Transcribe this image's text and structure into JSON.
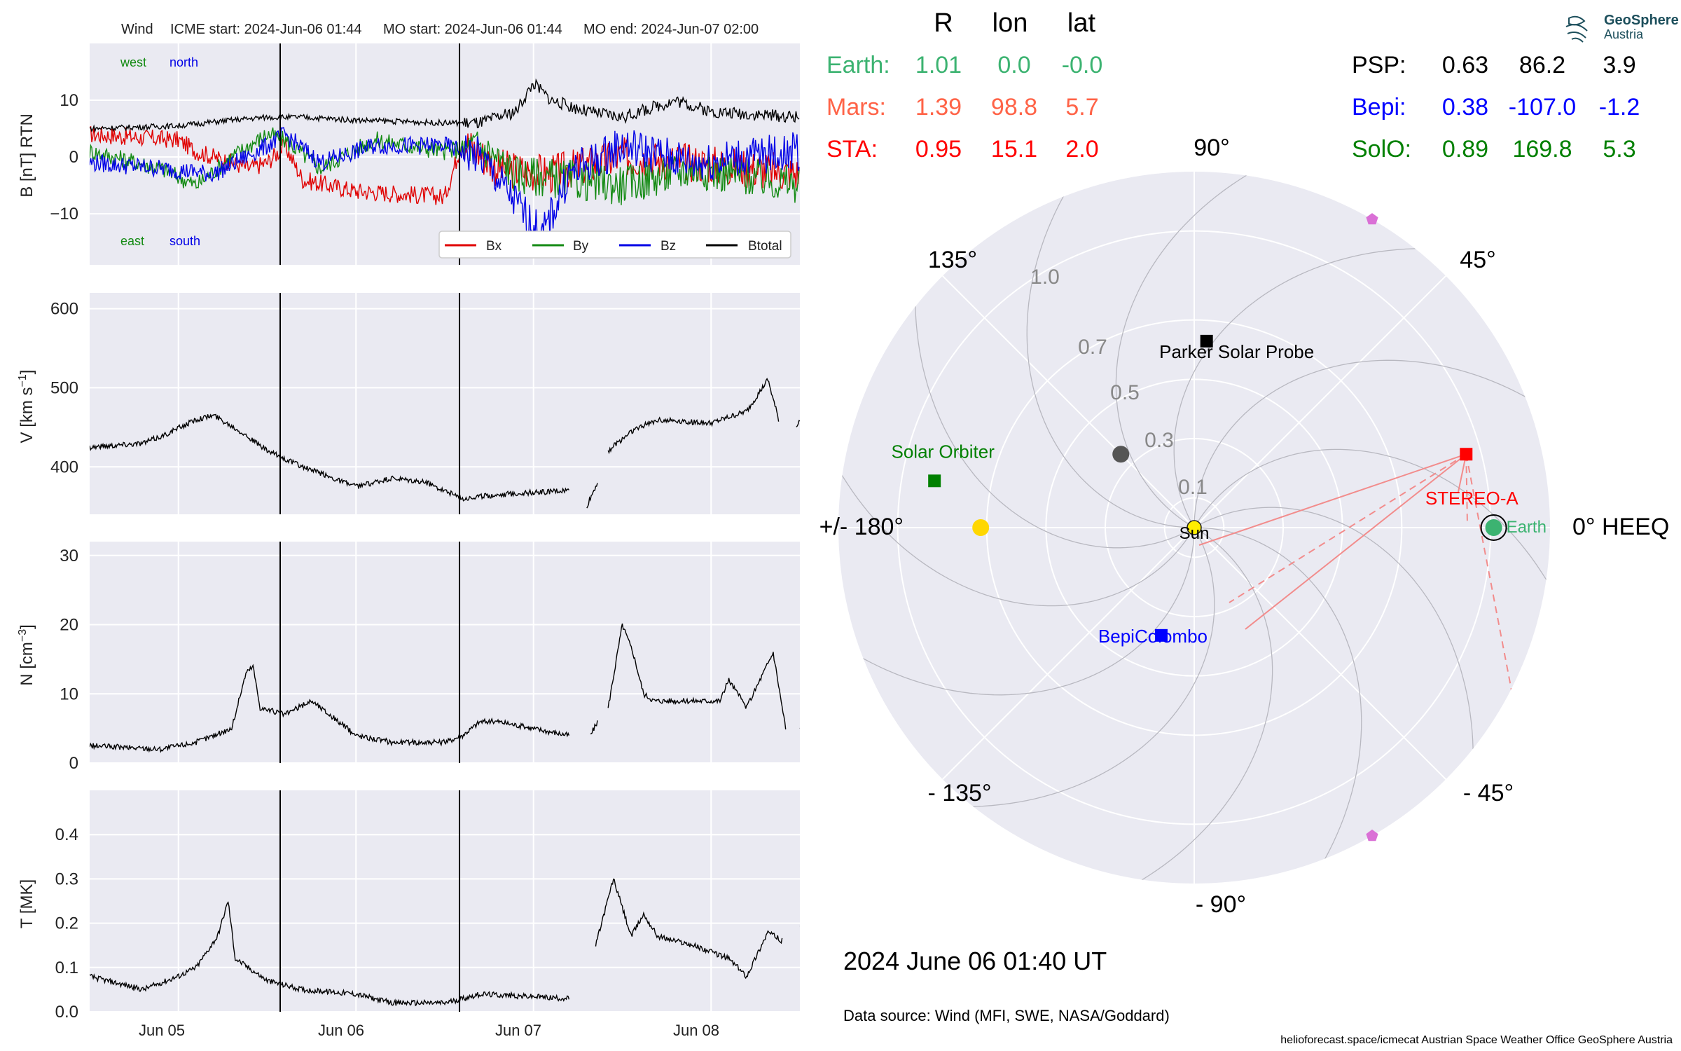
{
  "header": {
    "spacecraft": "Wind",
    "icme_start": "ICME start: 2024-Jun-06 01:44",
    "mo_start": "MO start: 2024-Jun-06 01:44",
    "mo_end": "MO end: 2024-Jun-07 02:00"
  },
  "event_lines_day": [
    1.073,
    2.083
  ],
  "x_ticks": [
    "Jun 05",
    "Jun 06",
    "Jun 07",
    "Jun 08"
  ],
  "x_range_days": [
    0,
    4
  ],
  "panels": {
    "b": {
      "ylabel": "B [nT] RTN",
      "ylim": [
        -19,
        20
      ],
      "ticks": [
        10,
        0,
        -10
      ],
      "tick_labels": [
        "10",
        "0",
        "−10"
      ],
      "labels": {
        "west": "west",
        "north": "north",
        "east": "east",
        "south": "south"
      },
      "legend": [
        "Bx",
        "By",
        "Bz",
        "Btotal"
      ],
      "colors": [
        "#e00000",
        "#138a13",
        "#0000e6",
        "#000000"
      ]
    },
    "v": {
      "ylabel": "V [km s",
      "ylabel_sup": "−1",
      "ylabel_end": "]",
      "ylim": [
        340,
        620
      ],
      "ticks": [
        600,
        500,
        400
      ],
      "tick_labels": [
        "600",
        "500",
        "400"
      ]
    },
    "n": {
      "ylabel": "N [cm",
      "ylabel_sup": "−3",
      "ylabel_end": "]",
      "ylim": [
        0,
        32
      ],
      "ticks": [
        30,
        20,
        10,
        0
      ],
      "tick_labels": [
        "30",
        "20",
        "10",
        "0"
      ]
    },
    "t": {
      "ylabel": "T [MK]",
      "ylim": [
        0,
        0.5
      ],
      "ticks": [
        0.4,
        0.3,
        0.2,
        0.1,
        0.0
      ],
      "tick_labels": [
        "0.4",
        "0.3",
        "0.2",
        "0.1",
        "0.0"
      ]
    }
  },
  "chart_data": [
    {
      "type": "line",
      "ylabel": "B [nT] RTN",
      "x_unit": "days since Jun 04 12:00",
      "series": [
        {
          "name": "Bx",
          "keypoints": [
            [
              0,
              4
            ],
            [
              0.5,
              3
            ],
            [
              0.6,
              1
            ],
            [
              0.9,
              -2
            ],
            [
              1.0,
              -1
            ],
            [
              1.1,
              2
            ],
            [
              1.2,
              -4
            ],
            [
              1.5,
              -6
            ],
            [
              2.0,
              -7
            ],
            [
              2.1,
              3
            ],
            [
              2.3,
              -2
            ],
            [
              2.6,
              -3
            ],
            [
              3.0,
              0
            ],
            [
              3.4,
              -1
            ],
            [
              4.0,
              -3
            ]
          ]
        },
        {
          "name": "By",
          "keypoints": [
            [
              0,
              1
            ],
            [
              0.4,
              -2
            ],
            [
              0.6,
              -5
            ],
            [
              0.8,
              0
            ],
            [
              1.0,
              4
            ],
            [
              1.1,
              3
            ],
            [
              1.3,
              -2
            ],
            [
              1.6,
              3
            ],
            [
              2.0,
              1
            ],
            [
              2.2,
              2
            ],
            [
              2.4,
              -3
            ],
            [
              2.7,
              -4
            ],
            [
              3.0,
              -5
            ],
            [
              3.4,
              -2
            ],
            [
              4.0,
              -5
            ]
          ]
        },
        {
          "name": "Bz",
          "keypoints": [
            [
              0,
              -1
            ],
            [
              0.4,
              -2
            ],
            [
              0.7,
              -3
            ],
            [
              1.0,
              2
            ],
            [
              1.1,
              4
            ],
            [
              1.3,
              -1
            ],
            [
              1.6,
              2
            ],
            [
              2.0,
              2
            ],
            [
              2.2,
              0
            ],
            [
              2.4,
              -8
            ],
            [
              2.55,
              -14
            ],
            [
              2.7,
              -3
            ],
            [
              3.0,
              2
            ],
            [
              3.4,
              -1
            ],
            [
              4.0,
              1
            ]
          ]
        },
        {
          "name": "Btotal",
          "keypoints": [
            [
              0,
              5
            ],
            [
              0.5,
              5.5
            ],
            [
              0.8,
              6.5
            ],
            [
              1.0,
              7
            ],
            [
              1.2,
              7
            ],
            [
              1.5,
              6.5
            ],
            [
              2.0,
              6
            ],
            [
              2.2,
              6
            ],
            [
              2.4,
              8
            ],
            [
              2.5,
              13
            ],
            [
              2.6,
              10
            ],
            [
              2.8,
              8
            ],
            [
              3.0,
              7
            ],
            [
              3.3,
              10
            ],
            [
              3.5,
              8
            ],
            [
              4.0,
              7
            ]
          ]
        }
      ]
    },
    {
      "type": "line",
      "ylabel": "V [km s-1]",
      "x_unit": "days since Jun 04 12:00",
      "segments": [
        [
          [
            0,
            425
          ],
          [
            0.3,
            430
          ],
          [
            0.42,
            440
          ],
          [
            0.6,
            460
          ],
          [
            0.7,
            465
          ],
          [
            0.85,
            445
          ],
          [
            1.0,
            420
          ],
          [
            1.2,
            400
          ],
          [
            1.5,
            375
          ],
          [
            1.7,
            385
          ],
          [
            1.9,
            380
          ],
          [
            2.1,
            360
          ],
          [
            2.3,
            365
          ],
          [
            2.7,
            370
          ]
        ],
        [
          [
            2.8,
            350
          ],
          [
            2.86,
            380
          ]
        ],
        [
          [
            2.92,
            420
          ],
          [
            3.05,
            445
          ],
          [
            3.2,
            460
          ],
          [
            3.5,
            455
          ],
          [
            3.7,
            470
          ],
          [
            3.82,
            510
          ],
          [
            3.88,
            460
          ]
        ],
        [
          [
            3.98,
            450
          ],
          [
            4.0,
            460
          ]
        ]
      ]
    },
    {
      "type": "line",
      "ylabel": "N [cm-3]",
      "x_unit": "days since Jun 04 12:00",
      "segments": [
        [
          [
            0,
            2.5
          ],
          [
            0.4,
            2
          ],
          [
            0.6,
            3
          ],
          [
            0.8,
            5
          ],
          [
            0.88,
            13
          ],
          [
            0.92,
            14
          ],
          [
            0.96,
            8
          ],
          [
            1.1,
            7
          ],
          [
            1.25,
            9
          ],
          [
            1.4,
            6
          ],
          [
            1.5,
            4
          ],
          [
            1.7,
            3
          ],
          [
            2.0,
            3
          ],
          [
            2.1,
            4
          ],
          [
            2.2,
            6
          ],
          [
            2.3,
            6
          ],
          [
            2.7,
            4
          ]
        ],
        [
          [
            2.82,
            4
          ],
          [
            2.86,
            6
          ]
        ],
        [
          [
            2.92,
            8
          ],
          [
            3.0,
            20
          ],
          [
            3.06,
            16
          ],
          [
            3.12,
            10
          ],
          [
            3.18,
            9
          ],
          [
            3.4,
            9
          ],
          [
            3.55,
            9
          ],
          [
            3.6,
            12
          ],
          [
            3.7,
            8
          ],
          [
            3.85,
            16
          ],
          [
            3.92,
            5
          ]
        ],
        [
          [
            4.0,
            5
          ],
          [
            4.05,
            4
          ]
        ]
      ]
    },
    {
      "type": "line",
      "ylabel": "T [MK]",
      "x_unit": "days since Jun 04 12:00",
      "segments": [
        [
          [
            0,
            0.08
          ],
          [
            0.3,
            0.05
          ],
          [
            0.5,
            0.08
          ],
          [
            0.6,
            0.1
          ],
          [
            0.72,
            0.17
          ],
          [
            0.78,
            0.25
          ],
          [
            0.82,
            0.12
          ],
          [
            1.0,
            0.07
          ],
          [
            1.2,
            0.05
          ],
          [
            1.5,
            0.04
          ],
          [
            1.7,
            0.02
          ],
          [
            2.0,
            0.02
          ],
          [
            2.2,
            0.04
          ],
          [
            2.7,
            0.03
          ]
        ],
        [
          [
            2.85,
            0.15
          ],
          [
            2.95,
            0.3
          ],
          [
            3.05,
            0.17
          ],
          [
            3.12,
            0.22
          ],
          [
            3.2,
            0.17
          ],
          [
            3.4,
            0.15
          ],
          [
            3.6,
            0.12
          ],
          [
            3.7,
            0.08
          ],
          [
            3.82,
            0.18
          ],
          [
            3.9,
            0.16
          ]
        ],
        [
          [
            4.0,
            0.2
          ],
          [
            4.05,
            0.18
          ]
        ]
      ]
    },
    {
      "type": "scatter",
      "projection": "polar",
      "r_ticks": [
        "0.1",
        "0.3",
        "0.5",
        "0.7",
        "1.0"
      ],
      "angle_labels": [
        "90°",
        "45°",
        "0° HEEQ",
        "- 45°",
        "- 90°",
        "- 135°",
        "+/- 180°",
        "135°"
      ],
      "bodies": [
        {
          "name": "Sun",
          "r": 0.0,
          "lon": 0.0,
          "color": "#ffee00"
        },
        {
          "name": "Earth",
          "r": 1.01,
          "lon": 0.0,
          "color": "#3cb371"
        },
        {
          "name": "STEREO-A",
          "r": 0.95,
          "lon": 15.1,
          "color": "#ff0000"
        },
        {
          "name": "Parker Solar Probe",
          "r": 0.63,
          "lon": 86.2,
          "color": "#000000"
        },
        {
          "name": "BepiColombo",
          "r": 0.38,
          "lon": -107.0,
          "color": "#0000ff"
        },
        {
          "name": "Solar Orbiter",
          "r": 0.89,
          "lon": 169.8,
          "color": "#008000"
        },
        {
          "name": "",
          "r": 0.72,
          "lon": 180.0,
          "color": "#ffd700"
        },
        {
          "name": "",
          "r": 0.35,
          "lon": 135.0,
          "color": "#555555"
        },
        {
          "name": "",
          "r": 1.2,
          "lon": 60.0,
          "color": "#da70d6"
        },
        {
          "name": "",
          "r": 1.2,
          "lon": -60.0,
          "color": "#da70d6"
        }
      ]
    }
  ],
  "coords": {
    "headers": [
      "R",
      "lon",
      "lat"
    ],
    "left": [
      {
        "name": "Earth:",
        "r": "1.01",
        "lon": "0.0",
        "lat": "-0.0",
        "color": "#3cb371"
      },
      {
        "name": "Mars:",
        "r": "1.39",
        "lon": "98.8",
        "lat": "5.7",
        "color": "#ff6347"
      },
      {
        "name": "STA:",
        "r": "0.95",
        "lon": "15.1",
        "lat": "2.0",
        "color": "#ff0000"
      }
    ],
    "right": [
      {
        "name": "PSP:",
        "r": "0.63",
        "lon": "86.2",
        "lat": "3.9",
        "color": "#000000"
      },
      {
        "name": "Bepi:",
        "r": "0.38",
        "lon": "-107.0",
        "lat": "-1.2",
        "color": "#0000ff"
      },
      {
        "name": "SolO:",
        "r": "0.89",
        "lon": "169.8",
        "lat": "5.3",
        "color": "#008000"
      }
    ]
  },
  "logo": {
    "name": "GeoSphere",
    "sub": "Austria"
  },
  "footer": {
    "datetime": "2024 June 06  01:40 UT",
    "source": "Data source: Wind (MFI, SWE, NASA/Goddard)",
    "credits": "helioforecast.space/icmecat   Austrian Space Weather Office   GeoSphere Austria"
  }
}
